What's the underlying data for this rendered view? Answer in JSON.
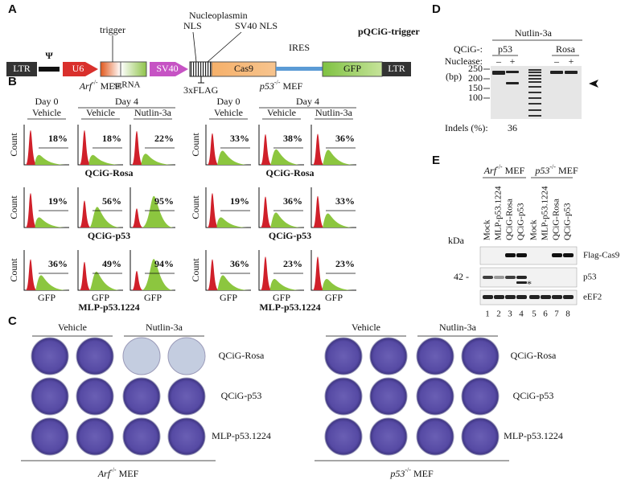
{
  "panel_a": {
    "label": "A",
    "title": "pQCiG-trigger",
    "ltr_left": "LTR",
    "psi": "Ψ",
    "u6": "U6",
    "trigger": "trigger",
    "sgrna": "sgRNA",
    "sv40": "SV40",
    "nucleoplasmin": "Nucleoplasmin",
    "nls": "NLS",
    "sv40_nls": "SV40 NLS",
    "cas9": "Cas9",
    "flag": "3xFLAG",
    "ires": "IRES",
    "gfp": "GFP",
    "ltr_right": "LTR"
  },
  "panel_b": {
    "label": "B",
    "count_label": "Count",
    "x_label": "GFP",
    "groups": [
      {
        "gene": "Arf",
        "genotype": "-/-",
        "cell": "MEF",
        "days": [
          "Day 0",
          "Day 4"
        ],
        "conditions": [
          "Vehicle",
          "Vehicle",
          "Nutlin-3a"
        ],
        "rows": [
          {
            "name": "QCiG-Rosa",
            "percents": [
              "18%",
              "18%",
              "22%"
            ]
          },
          {
            "name": "QCiG-p53",
            "percents": [
              "19%",
              "56%",
              "95%"
            ]
          },
          {
            "name": "MLP-p53.1224",
            "percents": [
              "36%",
              "49%",
              "94%"
            ]
          }
        ]
      },
      {
        "gene": "p53",
        "genotype": "-/-",
        "cell": "MEF",
        "days": [
          "Day 0",
          "Day 4"
        ],
        "conditions": [
          "Vehicle",
          "Vehicle",
          "Nutlin-3a"
        ],
        "rows": [
          {
            "name": "QCiG-Rosa",
            "percents": [
              "33%",
              "38%",
              "36%"
            ]
          },
          {
            "name": "QCiG-p53",
            "percents": [
              "19%",
              "36%",
              "33%"
            ]
          },
          {
            "name": "MLP-p53.1224",
            "percents": [
              "36%",
              "23%",
              "23%"
            ]
          }
        ]
      }
    ]
  },
  "panel_c": {
    "label": "C",
    "groups": [
      {
        "gene": "Arf",
        "genotype": "-/-",
        "cell": "MEF",
        "conditions": [
          "Vehicle",
          "Nutlin-3a"
        ],
        "rows": [
          "QCiG-Rosa",
          "QCiG-p53",
          "MLP-p53.1224"
        ]
      },
      {
        "gene": "p53",
        "genotype": "-/-",
        "cell": "MEF",
        "conditions": [
          "Vehicle",
          "Nutlin-3a"
        ],
        "rows": [
          "QCiG-Rosa",
          "QCiG-p53",
          "MLP-p53.1224"
        ]
      }
    ]
  },
  "panel_d": {
    "label": "D",
    "treatment": "Nutlin-3a",
    "qcig_label": "QCiG-:",
    "nuclease_label": "Nuclease:",
    "targets": [
      "p53",
      "Rosa"
    ],
    "nuclease": [
      "–",
      "+",
      "–",
      "+"
    ],
    "bp_label": "(bp)",
    "markers": [
      "250",
      "200",
      "150",
      "100"
    ],
    "indels_label": "Indels (%):",
    "indels": "36"
  },
  "panel_e": {
    "label": "E",
    "groups": [
      {
        "gene": "Arf",
        "genotype": "-/-",
        "cell": "MEF"
      },
      {
        "gene": "p53",
        "genotype": "-/-",
        "cell": "MEF"
      }
    ],
    "lanes": [
      "Mock",
      "MLP-p53.1224",
      "QCiG-Rosa",
      "QCiG-p53",
      "Mock",
      "MLP-p53.1224",
      "QCiG-Rosa",
      "QCiG-p53"
    ],
    "lane_numbers": [
      "1",
      "2",
      "3",
      "4",
      "5",
      "6",
      "7",
      "8"
    ],
    "kda_label": "kDa",
    "marker": "42 -",
    "blots": [
      "Flag-Cas9",
      "p53",
      "eEF2"
    ],
    "asterisk": "*"
  }
}
